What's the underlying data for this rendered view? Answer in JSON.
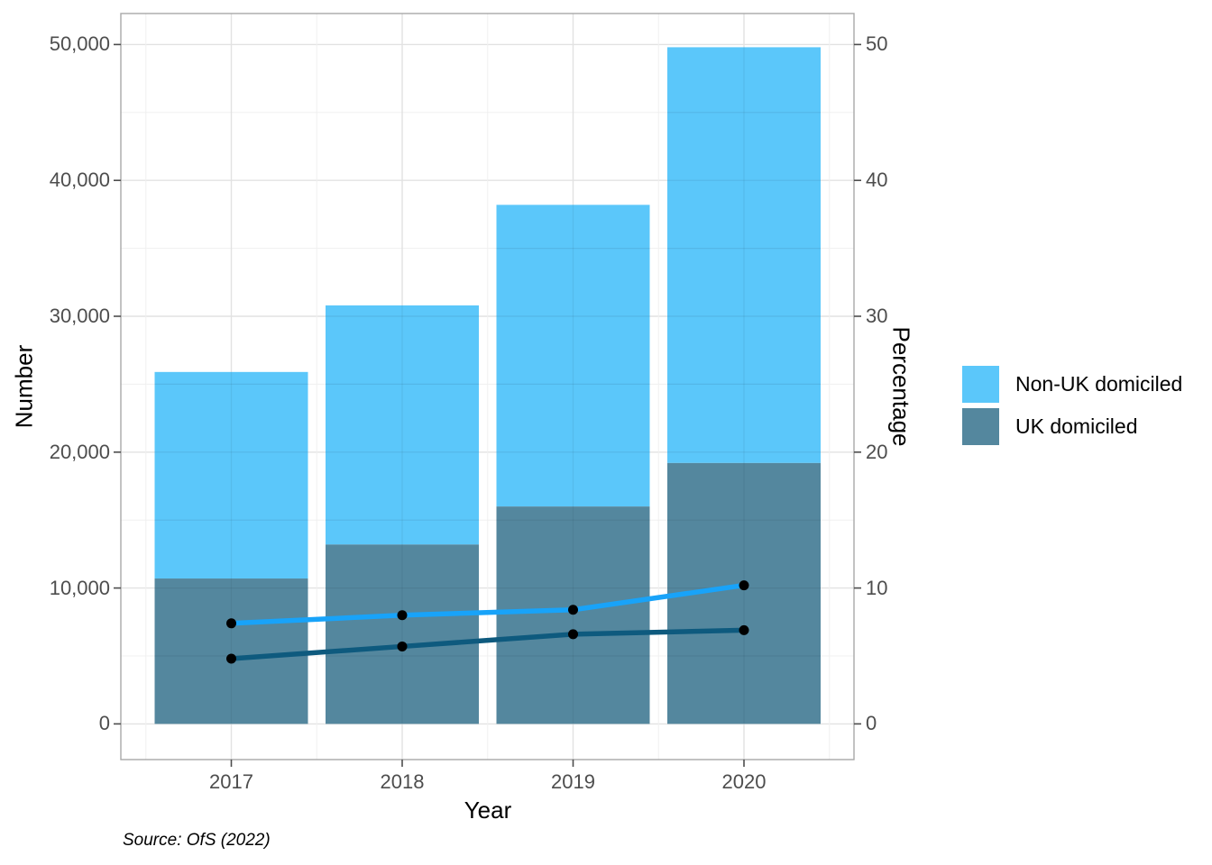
{
  "chart_data": {
    "type": "bar",
    "subtype": "stacked-bars-with-percentage-lines",
    "title": "",
    "categories": [
      "2017",
      "2018",
      "2019",
      "2020"
    ],
    "x_label": "Year",
    "left_axis": {
      "label": "Number",
      "ticks": [
        "0",
        "10,000",
        "20,000",
        "30,000",
        "40,000",
        "50,000"
      ],
      "tick_values": [
        0,
        10000,
        20000,
        30000,
        40000,
        50000
      ],
      "range": [
        0,
        50000
      ]
    },
    "right_axis": {
      "label": "Percentage",
      "ticks": [
        "0",
        "10",
        "20",
        "30",
        "40",
        "50"
      ],
      "tick_values": [
        0,
        10,
        20,
        30,
        40,
        50
      ],
      "range": [
        0,
        50
      ]
    },
    "bar_series": [
      {
        "name": "UK domiciled",
        "stack_position": "bottom",
        "values": [
          10700,
          13200,
          16000,
          19200
        ],
        "color": "#54879E"
      },
      {
        "name": "Non-UK domiciled",
        "stack_position": "top",
        "values": [
          15200,
          17600,
          22200,
          30600
        ],
        "color": "#5BC7FA"
      }
    ],
    "bar_totals": [
      25900,
      30800,
      38200,
      49800
    ],
    "line_series": [
      {
        "name": "Non-UK domiciled percentage",
        "values": [
          7.4,
          8.0,
          8.4,
          10.2
        ],
        "color": "#18A3F9"
      },
      {
        "name": "UK domiciled percentage",
        "values": [
          4.8,
          5.7,
          6.6,
          6.9
        ],
        "color": "#0E5A7E"
      }
    ],
    "point_color": "#000000",
    "grid": true,
    "legend_position": "right"
  },
  "legend": {
    "items": [
      {
        "label": "Non-UK domiciled",
        "color": "#5BC7FA"
      },
      {
        "label": "UK domiciled",
        "color": "#54879E"
      }
    ]
  },
  "labels": {
    "y_left": "Number",
    "y_right": "Percentage",
    "x": "Year",
    "caption": "Source: OfS (2022)"
  },
  "colors": {
    "tick_text": "#4D4D4D",
    "axis_text": "#000000",
    "panel_border": "#A8A8A8",
    "grid_major": "#E2E2E2",
    "grid_minor": "#F0F0F0",
    "tick_mark": "#4D4D4D"
  }
}
